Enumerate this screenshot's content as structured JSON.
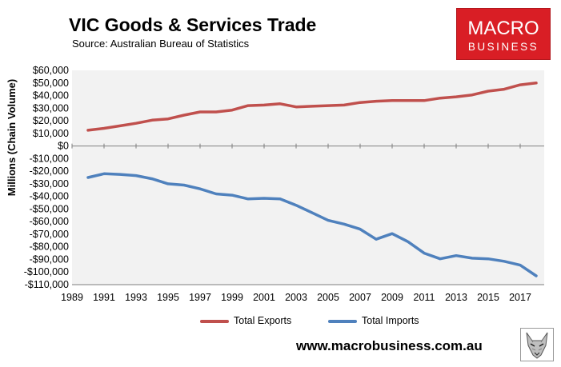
{
  "header": {
    "title": "VIC Goods & Services Trade",
    "subtitle": "Source:  Australian Bureau of Statistics"
  },
  "logo": {
    "top": "MACRO",
    "bottom": "BUSINESS",
    "color": "#d91e25"
  },
  "footer": {
    "url": "www.macrobusiness.com.au",
    "mascot_icon": "wolf-logo-icon"
  },
  "chart_data": {
    "type": "line",
    "ylabel": "Millions (Chain Volume)",
    "xlabel": "",
    "ylim": [
      -110000,
      60000
    ],
    "yticks": [
      60000,
      50000,
      40000,
      30000,
      20000,
      10000,
      0,
      -10000,
      -20000,
      -30000,
      -40000,
      -50000,
      -60000,
      -70000,
      -80000,
      -90000,
      -100000,
      -110000
    ],
    "ytick_labels": [
      "$60,000",
      "$50,000",
      "$40,000",
      "$30,000",
      "$20,000",
      "$10,000",
      "$0",
      "-$10,000",
      "-$20,000",
      "-$30,000",
      "-$40,000",
      "-$50,000",
      "-$60,000",
      "-$70,000",
      "-$80,000",
      "-$90,000",
      "-$100,000",
      "-$110,000"
    ],
    "xlim": [
      1989,
      2018.5
    ],
    "xticks": [
      "1989",
      "1991",
      "1993",
      "1995",
      "1997",
      "1999",
      "2001",
      "2003",
      "2005",
      "2007",
      "2009",
      "2011",
      "2013",
      "2015",
      "2017"
    ],
    "x": [
      1990,
      1991,
      1992,
      1993,
      1994,
      1995,
      1996,
      1997,
      1998,
      1999,
      2000,
      2001,
      2002,
      2003,
      2004,
      2005,
      2006,
      2007,
      2008,
      2009,
      2010,
      2011,
      2012,
      2013,
      2014,
      2015,
      2016,
      2017,
      2018
    ],
    "series": [
      {
        "name": "Total Exports",
        "color": "#c0504d",
        "values": [
          12500,
          14000,
          16000,
          18000,
          20500,
          21500,
          24500,
          27000,
          27000,
          28500,
          32000,
          32500,
          33500,
          31000,
          31500,
          32000,
          32500,
          34500,
          35500,
          36000,
          36000,
          36000,
          38000,
          39000,
          40500,
          43500,
          45000,
          48500,
          50000
        ]
      },
      {
        "name": "Total Imports",
        "color": "#4f81bd",
        "values": [
          -25000,
          -22000,
          -22500,
          -23500,
          -26000,
          -30000,
          -31000,
          -34000,
          -38000,
          -39000,
          -42000,
          -41500,
          -42000,
          -47000,
          -53000,
          -59000,
          -62000,
          -66000,
          -74000,
          -69500,
          -76000,
          -85000,
          -89500,
          -87000,
          -89000,
          -89500,
          -91500,
          -94500,
          -103000
        ]
      }
    ],
    "grid": false,
    "legend": "bottom"
  }
}
